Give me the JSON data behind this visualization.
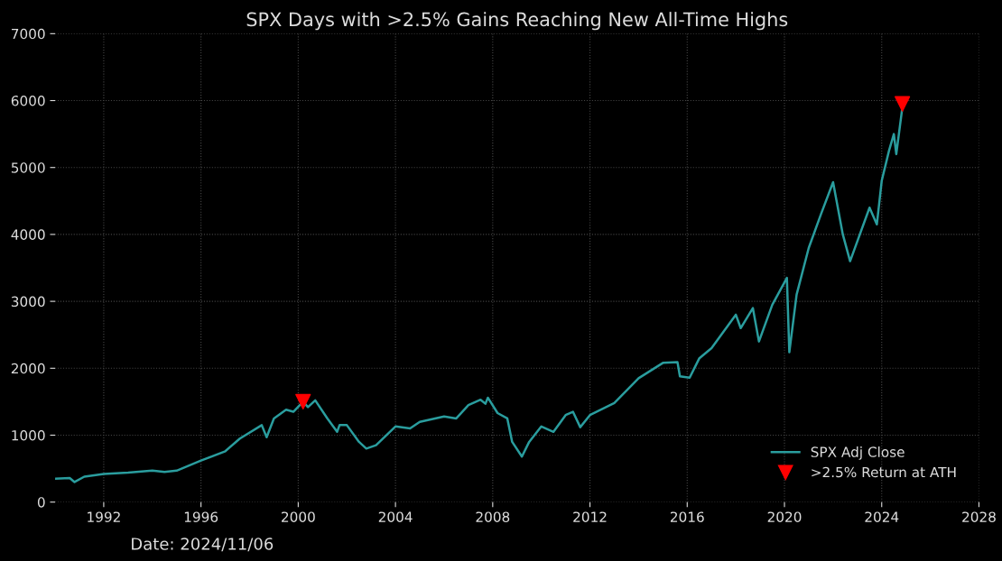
{
  "chart_data": {
    "type": "line",
    "title": "SPX Days with >2.5% Gains Reaching New All-Time Highs",
    "xlim": [
      1990,
      2028
    ],
    "xticks": [
      1992,
      1996,
      2000,
      2004,
      2008,
      2012,
      2016,
      2020,
      2024,
      2028
    ],
    "ylim": [
      0,
      7000
    ],
    "yticks": [
      0,
      1000,
      2000,
      3000,
      4000,
      5000,
      6000,
      7000
    ],
    "grid": true,
    "legend": "bottom right",
    "annotations": [
      "Date: 2024/11/06"
    ],
    "series": [
      {
        "name": "SPX Adj Close",
        "color": "#2a9d9e",
        "marker": "none",
        "line_style": "solid",
        "x": [
          1990.0,
          1990.6,
          1990.8,
          1991.2,
          1992,
          1993,
          1994,
          1994.5,
          1995,
          1996,
          1997,
          1997.6,
          1998.5,
          1998.7,
          1999,
          1999.5,
          1999.8,
          2000.2,
          2000.4,
          2000.7,
          2001.2,
          2001.6,
          2001.7,
          2002,
          2002.5,
          2002.8,
          2003.2,
          2004,
          2004.6,
          2005,
          2006,
          2006.5,
          2007,
          2007.5,
          2007.7,
          2007.8,
          2008.2,
          2008.6,
          2008.8,
          2009.2,
          2009.5,
          2010,
          2010.5,
          2011,
          2011.3,
          2011.6,
          2012,
          2013,
          2014,
          2015,
          2015.6,
          2015.7,
          2016.1,
          2016.5,
          2017,
          2018,
          2018.2,
          2018.7,
          2018.95,
          2019.5,
          2020.1,
          2020.2,
          2020.5,
          2021,
          2021.5,
          2022,
          2022.4,
          2022.7,
          2023,
          2023.5,
          2023.8,
          2024,
          2024.3,
          2024.5,
          2024.6,
          2024.85
        ],
        "values": [
          350,
          360,
          300,
          380,
          420,
          440,
          470,
          450,
          470,
          620,
          760,
          950,
          1150,
          970,
          1250,
          1380,
          1350,
          1500,
          1420,
          1520,
          1250,
          1050,
          1150,
          1150,
          900,
          800,
          850,
          1130,
          1100,
          1200,
          1280,
          1250,
          1450,
          1530,
          1470,
          1560,
          1330,
          1250,
          900,
          680,
          900,
          1130,
          1050,
          1300,
          1350,
          1120,
          1300,
          1480,
          1850,
          2080,
          2090,
          1880,
          1860,
          2150,
          2300,
          2800,
          2600,
          2900,
          2400,
          2950,
          3350,
          2240,
          3100,
          3800,
          4300,
          4780,
          4000,
          3600,
          3900,
          4400,
          4150,
          4800,
          5250,
          5500,
          5200,
          5900
        ]
      },
      {
        "name": ">2.5% Return at ATH",
        "type": "scatter",
        "color": "#ff0000",
        "marker": "triangle",
        "x": [
          2000.2,
          2024.85
        ],
        "values": [
          1500,
          5950
        ]
      }
    ]
  }
}
